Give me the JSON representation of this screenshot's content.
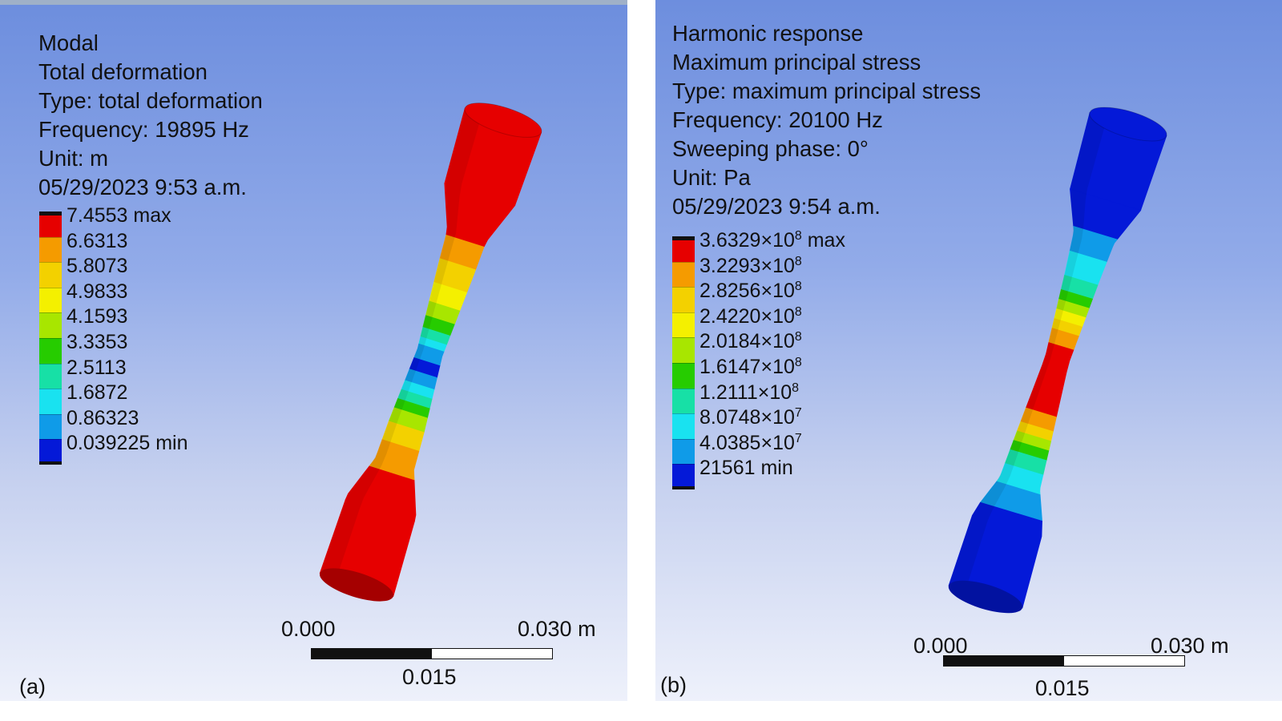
{
  "panels": [
    {
      "id": "a",
      "panel_label": "(a)",
      "info": [
        "Modal",
        "Total deformation",
        "Type: total deformation",
        "Frequency: 19895 Hz",
        "Unit: m",
        "05/29/2023 9:53 a.m."
      ],
      "legend": [
        {
          "label": "7.4553 max",
          "color": "#e60000"
        },
        {
          "label": "6.6313",
          "color": "#f59b00"
        },
        {
          "label": "5.8073",
          "color": "#f3d100"
        },
        {
          "label": "4.9833",
          "color": "#f4f000"
        },
        {
          "label": "4.1593",
          "color": "#a8e600"
        },
        {
          "label": "3.3353",
          "color": "#26cc00"
        },
        {
          "label": "2.5113",
          "color": "#17e0a6"
        },
        {
          "label": "1.6872",
          "color": "#19e2f0"
        },
        {
          "label": "0.86323",
          "color": "#0f9be8"
        },
        {
          "label": "0.039225 min",
          "color": "#0419d8"
        }
      ],
      "scale": {
        "start": "0.000",
        "end": "0.030 m",
        "mid": "0.015"
      }
    },
    {
      "id": "b",
      "panel_label": "(b)",
      "info": [
        "Harmonic response",
        "Maximum principal stress",
        "Type: maximum principal stress",
        "Frequency: 20100 Hz",
        "Sweeping phase: 0°",
        "Unit: Pa",
        "05/29/2023 9:54 a.m."
      ],
      "legend": [
        {
          "mant": "3.6329×10",
          "exp": "8",
          "suffix": " max",
          "color": "#e60000"
        },
        {
          "mant": "3.2293×10",
          "exp": "8",
          "suffix": "",
          "color": "#f59b00"
        },
        {
          "mant": "2.8256×10",
          "exp": "8",
          "suffix": "",
          "color": "#f3d100"
        },
        {
          "mant": "2.4220×10",
          "exp": "8",
          "suffix": "",
          "color": "#f4f000"
        },
        {
          "mant": "2.0184×10",
          "exp": "8",
          "suffix": "",
          "color": "#a8e600"
        },
        {
          "mant": "1.6147×10",
          "exp": "8",
          "suffix": "",
          "color": "#26cc00"
        },
        {
          "mant": "1.2111×10",
          "exp": "8",
          "suffix": "",
          "color": "#17e0a6"
        },
        {
          "mant": "8.0748×10",
          "exp": "7",
          "suffix": "",
          "color": "#19e2f0"
        },
        {
          "mant": "4.0385×10",
          "exp": "7",
          "suffix": "",
          "color": "#0f9be8"
        },
        {
          "mant": "21561 min",
          "exp": "",
          "suffix": "",
          "color": "#0419d8"
        }
      ],
      "scale": {
        "start": "0.000",
        "end": "0.030 m",
        "mid": "0.015"
      }
    }
  ]
}
